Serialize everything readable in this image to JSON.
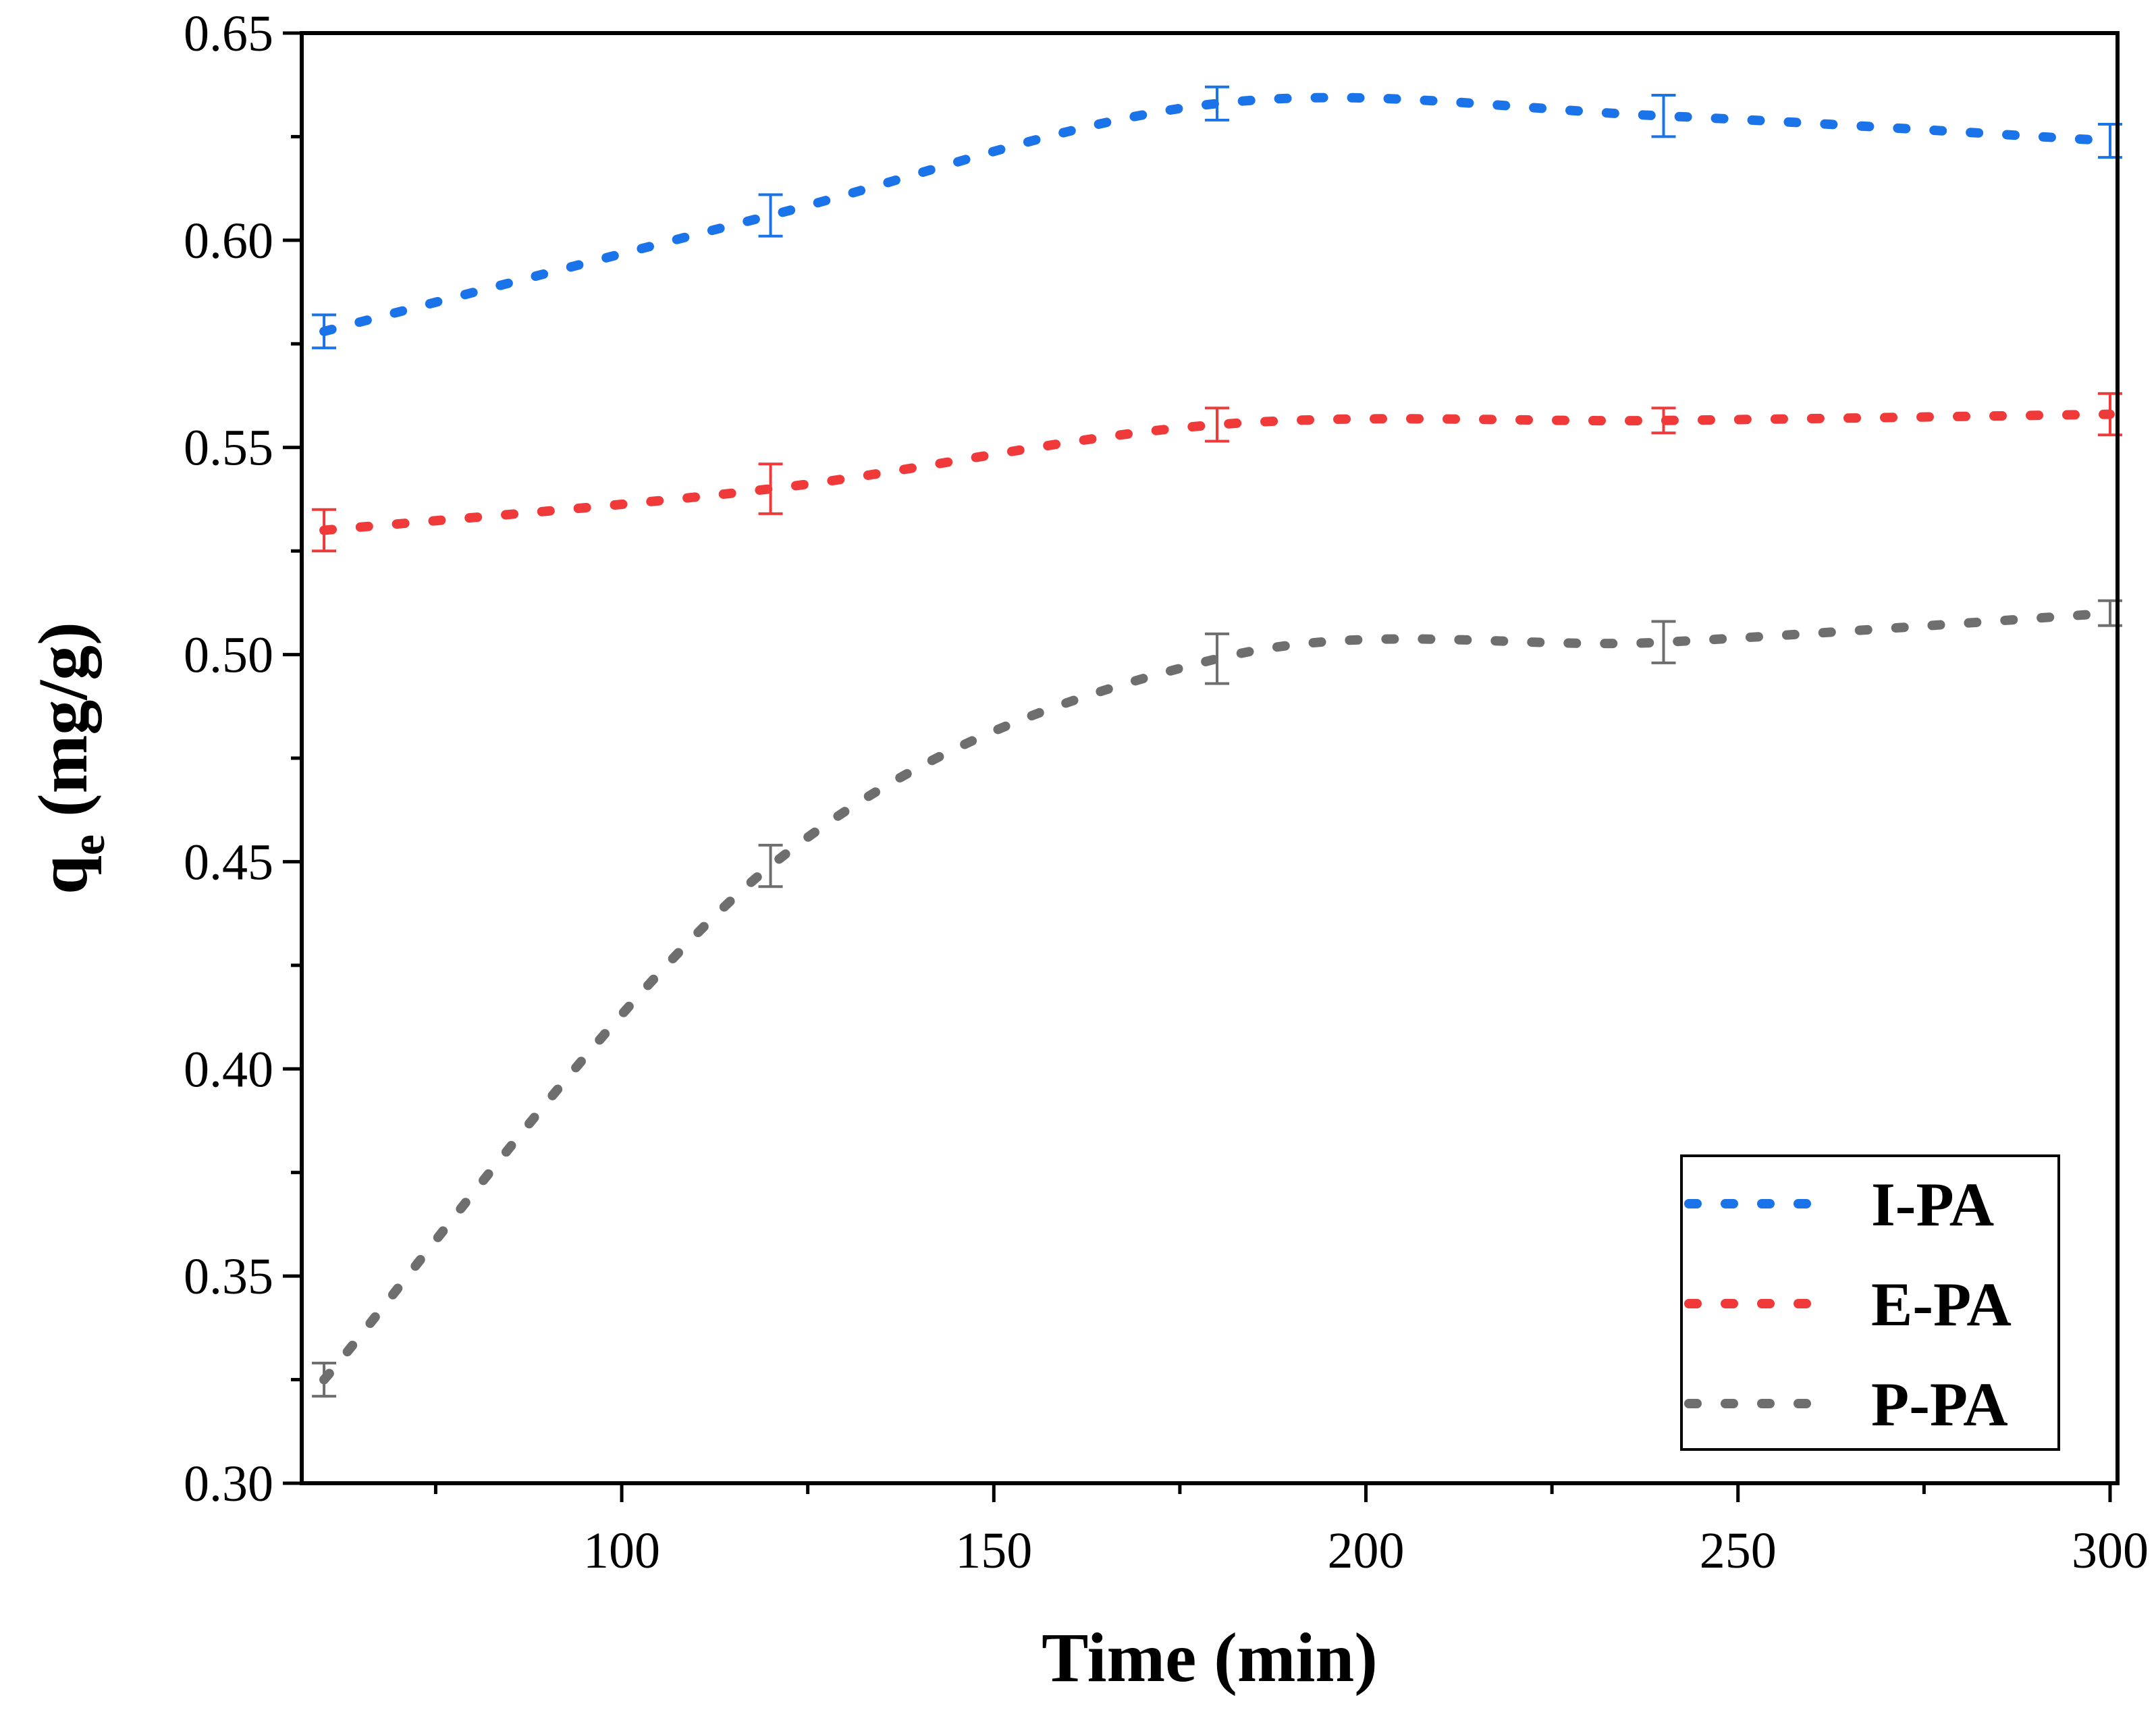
{
  "chart_data": {
    "type": "line",
    "title": "",
    "xlabel": "Time (min)",
    "ylabel_main": "q",
    "ylabel_sub": "e",
    "ylabel_unit": " (mg/g)",
    "xlim": [
      57,
      301
    ],
    "ylim": [
      0.3,
      0.65
    ],
    "xticks": [
      100,
      150,
      200,
      250,
      300
    ],
    "xtick_labels": [
      "100",
      "150",
      "200",
      "250",
      "300"
    ],
    "xminor": [
      75,
      125,
      175,
      225,
      275
    ],
    "yticks": [
      0.3,
      0.35,
      0.4,
      0.45,
      0.5,
      0.55,
      0.6,
      0.65
    ],
    "ytick_labels": [
      "0.30",
      "0.35",
      "0.40",
      "0.45",
      "0.50",
      "0.55",
      "0.60",
      "0.65"
    ],
    "yminor": [
      0.325,
      0.375,
      0.425,
      0.475,
      0.525,
      0.575,
      0.625
    ],
    "x": [
      60,
      120,
      180,
      240,
      300
    ],
    "legend_position": "bottom-right",
    "series": [
      {
        "name": "I-PA",
        "color": "#1a73e8",
        "values": [
          0.578,
          0.606,
          0.633,
          0.63,
          0.624
        ],
        "errors": [
          0.004,
          0.005,
          0.004,
          0.005,
          0.004
        ]
      },
      {
        "name": "E-PA",
        "color": "#f03a3a",
        "values": [
          0.53,
          0.54,
          0.5555,
          0.5565,
          0.558
        ],
        "errors": [
          0.005,
          0.006,
          0.004,
          0.003,
          0.005
        ]
      },
      {
        "name": "P-PA",
        "color": "#6e6e6e",
        "values": [
          0.325,
          0.449,
          0.499,
          0.503,
          0.51
        ],
        "errors": [
          0.004,
          0.005,
          0.006,
          0.005,
          0.003
        ]
      }
    ]
  }
}
